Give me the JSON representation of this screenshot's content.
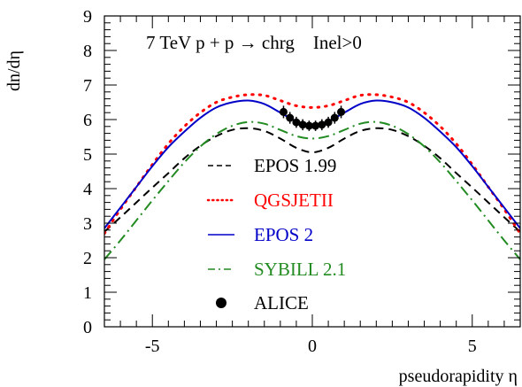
{
  "chart_data": {
    "type": "line",
    "title": "",
    "annotation": "7 TeV p + p → chrg    Inel>0",
    "xlabel": "pseudorapidity η",
    "ylabel": "dn/dη",
    "xlim": [
      -6.5,
      6.5
    ],
    "ylim": [
      0,
      9
    ],
    "xticks": [
      -5,
      0,
      5
    ],
    "xtick_labels": [
      "-5",
      "0",
      "5"
    ],
    "yticks": [
      0,
      1,
      2,
      3,
      4,
      5,
      6,
      7,
      8,
      9
    ],
    "ytick_labels": [
      "0",
      "1",
      "2",
      "3",
      "4",
      "5",
      "6",
      "7",
      "8",
      "9"
    ],
    "grid": false,
    "legend_position": "center",
    "series": [
      {
        "name": "EPOS 1.99",
        "style": "dashed",
        "color": "#000000",
        "x": [
          -6.5,
          -6,
          -5.5,
          -5,
          -4.5,
          -4,
          -3.5,
          -3,
          -2.5,
          -2,
          -1.5,
          -1,
          -0.5,
          0,
          0.5,
          1,
          1.5,
          2,
          2.5,
          3,
          3.5,
          4,
          4.5,
          5,
          5.5,
          6,
          6.5
        ],
        "y": [
          2.75,
          3.17,
          3.6,
          4.03,
          4.45,
          4.88,
          5.24,
          5.52,
          5.7,
          5.75,
          5.67,
          5.45,
          5.18,
          5.05,
          5.18,
          5.45,
          5.67,
          5.75,
          5.7,
          5.52,
          5.24,
          4.88,
          4.45,
          4.03,
          3.6,
          3.17,
          2.75
        ]
      },
      {
        "name": "QGSJETII",
        "style": "dotted",
        "color": "#ff0000",
        "x": [
          -6.5,
          -6,
          -5.5,
          -5,
          -4.5,
          -4,
          -3.5,
          -3,
          -2.5,
          -2,
          -1.5,
          -1,
          -0.5,
          0,
          0.5,
          1,
          1.5,
          2,
          2.5,
          3,
          3.5,
          4,
          4.5,
          5,
          5.5,
          6,
          6.5
        ],
        "y": [
          2.7,
          3.4,
          4.05,
          4.7,
          5.3,
          5.8,
          6.2,
          6.5,
          6.65,
          6.72,
          6.7,
          6.55,
          6.4,
          6.35,
          6.4,
          6.55,
          6.7,
          6.72,
          6.65,
          6.5,
          6.2,
          5.8,
          5.3,
          4.7,
          4.05,
          3.4,
          2.7
        ]
      },
      {
        "name": "EPOS 2",
        "style": "solid",
        "color": "#0000c8",
        "x": [
          -6.5,
          -6,
          -5.5,
          -5,
          -4.5,
          -4,
          -3.5,
          -3,
          -2.5,
          -2,
          -1.5,
          -1,
          -0.5,
          0,
          0.5,
          1,
          1.5,
          2,
          2.5,
          3,
          3.5,
          4,
          4.5,
          5,
          5.5,
          6,
          6.5
        ],
        "y": [
          2.85,
          3.45,
          4.05,
          4.65,
          5.2,
          5.65,
          6.05,
          6.35,
          6.5,
          6.55,
          6.45,
          6.2,
          5.95,
          5.85,
          5.95,
          6.2,
          6.45,
          6.55,
          6.5,
          6.35,
          6.05,
          5.65,
          5.2,
          4.65,
          4.05,
          3.45,
          2.85
        ]
      },
      {
        "name": "SYBILL 2.1",
        "style": "dashdot",
        "color": "#228b22",
        "x": [
          -6.5,
          -6,
          -5.5,
          -5,
          -4.5,
          -4,
          -3.5,
          -3,
          -2.5,
          -2,
          -1.5,
          -1,
          -0.5,
          0,
          0.5,
          1,
          1.5,
          2,
          2.5,
          3,
          3.5,
          4,
          4.5,
          5,
          5.5,
          6,
          6.5
        ],
        "y": [
          1.95,
          2.5,
          3.08,
          3.66,
          4.22,
          4.76,
          5.22,
          5.58,
          5.82,
          5.93,
          5.88,
          5.7,
          5.52,
          5.45,
          5.52,
          5.7,
          5.88,
          5.93,
          5.82,
          5.58,
          5.22,
          4.76,
          4.22,
          3.66,
          3.08,
          2.5,
          1.95
        ]
      },
      {
        "name": "ALICE",
        "style": "markers",
        "color": "#000000",
        "x": [
          -0.9,
          -0.7,
          -0.5,
          -0.3,
          -0.1,
          0.1,
          0.3,
          0.5,
          0.7,
          0.9
        ],
        "y": [
          6.22,
          6.05,
          5.92,
          5.85,
          5.82,
          5.82,
          5.85,
          5.92,
          6.05,
          6.22
        ],
        "yerr": [
          0.18,
          0.17,
          0.16,
          0.16,
          0.15,
          0.15,
          0.16,
          0.16,
          0.17,
          0.18
        ]
      }
    ],
    "legend": [
      {
        "label": "EPOS 1.99",
        "color": "#000000"
      },
      {
        "label": "QGSJETII",
        "color": "#ff0000"
      },
      {
        "label": "EPOS 2",
        "color": "#0000c8"
      },
      {
        "label": "SYBILL 2.1",
        "color": "#228b22"
      },
      {
        "label": "ALICE",
        "color": "#000000"
      }
    ]
  }
}
